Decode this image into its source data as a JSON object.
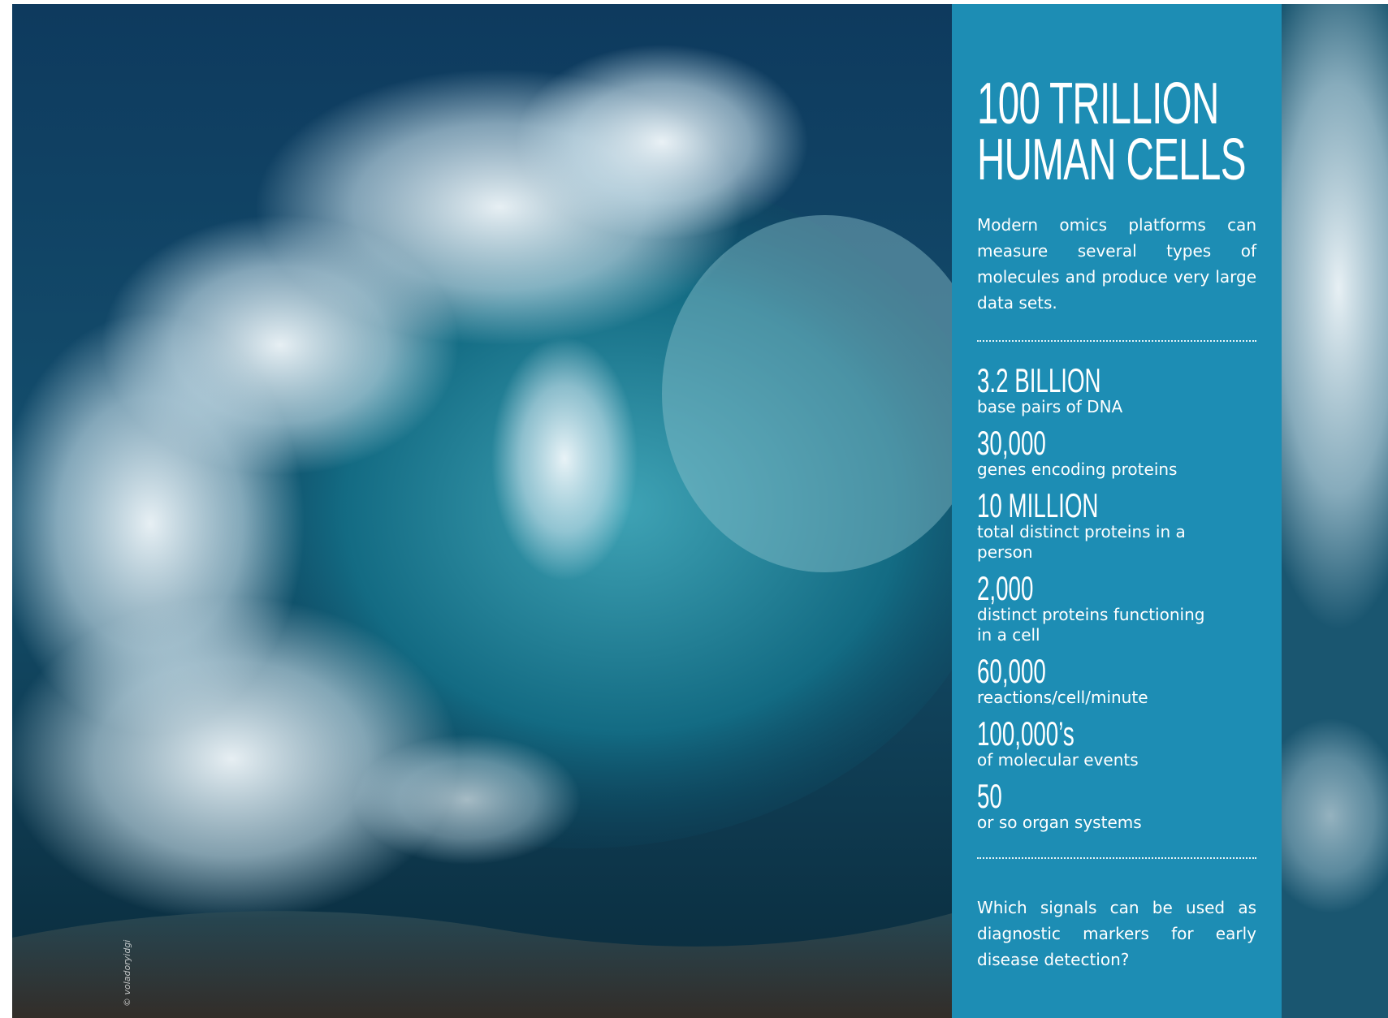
{
  "title_lines": [
    "100 TRILLION",
    "HUMAN CELLS"
  ],
  "intro": "Modern omics platforms can measure several types of molecules and produce very large data sets.",
  "stats": [
    {
      "number": "3.2 BILLION",
      "description": "base pairs of DNA"
    },
    {
      "number": "30,000",
      "description": "genes encoding proteins"
    },
    {
      "number": "10 MILLION",
      "description": "total distinct proteins in a person"
    },
    {
      "number": "2,000",
      "description": "distinct proteins functioning in a cell"
    },
    {
      "number": "60,000",
      "description": "reactions/cell/minute"
    },
    {
      "number": "100,000’s",
      "description": "of molecular events"
    },
    {
      "number": "50",
      "description": "or so organ systems"
    }
  ],
  "question": "Which signals can be used as diagnostic markers for early disease detection?",
  "photo_credit": "© voladoryidgi"
}
